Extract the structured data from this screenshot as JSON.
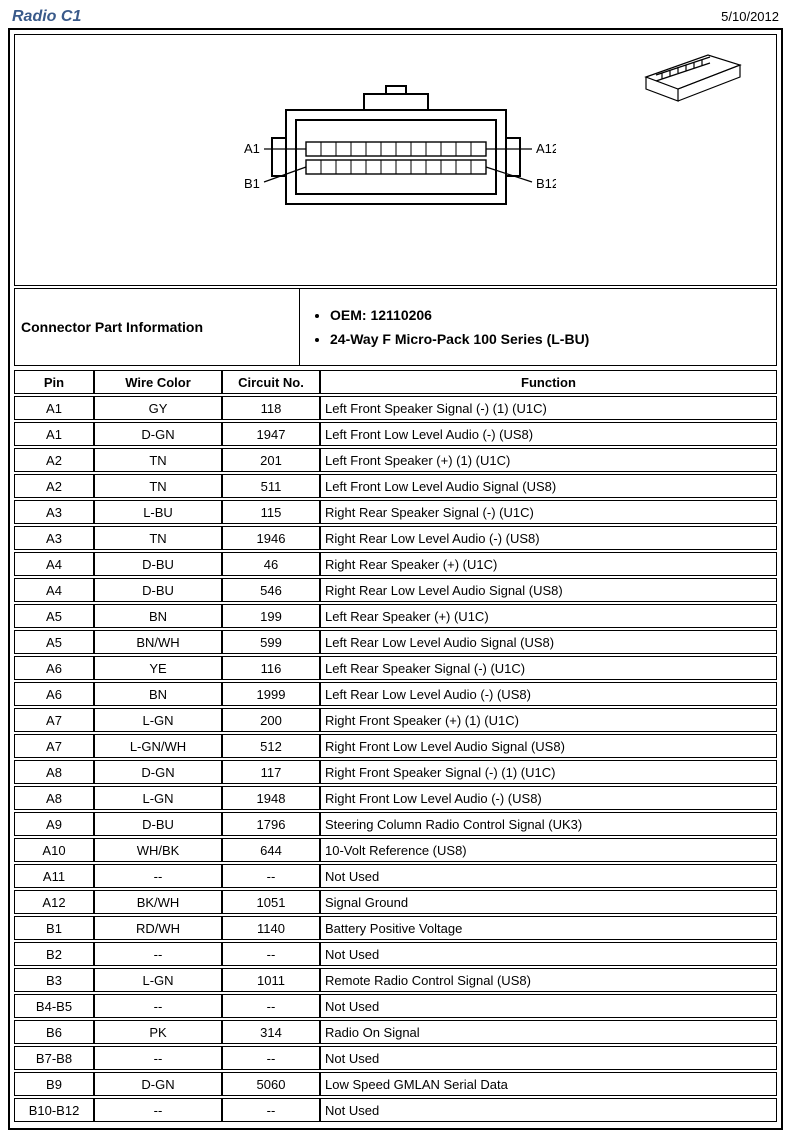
{
  "header": {
    "title": "Radio C1",
    "date": "5/10/2012"
  },
  "diagram": {
    "labels": {
      "a1": "A1",
      "a12": "A12",
      "b1": "B1",
      "b12": "B12"
    }
  },
  "info": {
    "heading": "Connector Part Information",
    "oem_label": "OEM: 12110206",
    "series_label": "24-Way F Micro-Pack 100 Series (L-BU)"
  },
  "columns": {
    "pin": "Pin",
    "wire": "Wire Color",
    "circuit": "Circuit No.",
    "func": "Function"
  },
  "rows": [
    {
      "pin": "A1",
      "wire": "GY",
      "circuit": "118",
      "func": "Left Front Speaker Signal (-) (1) (U1C)"
    },
    {
      "pin": "A1",
      "wire": "D-GN",
      "circuit": "1947",
      "func": "Left Front Low Level Audio (-) (US8)"
    },
    {
      "pin": "A2",
      "wire": "TN",
      "circuit": "201",
      "func": "Left Front Speaker (+) (1) (U1C)"
    },
    {
      "pin": "A2",
      "wire": "TN",
      "circuit": "511",
      "func": "Left Front Low Level Audio Signal (US8)"
    },
    {
      "pin": "A3",
      "wire": "L-BU",
      "circuit": "115",
      "func": "Right Rear Speaker Signal (-) (U1C)"
    },
    {
      "pin": "A3",
      "wire": "TN",
      "circuit": "1946",
      "func": "Right Rear Low Level Audio (-) (US8)"
    },
    {
      "pin": "A4",
      "wire": "D-BU",
      "circuit": "46",
      "func": "Right Rear Speaker (+) (U1C)"
    },
    {
      "pin": "A4",
      "wire": "D-BU",
      "circuit": "546",
      "func": "Right Rear Low Level Audio Signal (US8)"
    },
    {
      "pin": "A5",
      "wire": "BN",
      "circuit": "199",
      "func": "Left Rear Speaker (+) (U1C)"
    },
    {
      "pin": "A5",
      "wire": "BN/WH",
      "circuit": "599",
      "func": "Left Rear Low Level Audio Signal (US8)"
    },
    {
      "pin": "A6",
      "wire": "YE",
      "circuit": "116",
      "func": "Left Rear Speaker Signal (-) (U1C)"
    },
    {
      "pin": "A6",
      "wire": "BN",
      "circuit": "1999",
      "func": "Left Rear Low Level Audio (-) (US8)"
    },
    {
      "pin": "A7",
      "wire": "L-GN",
      "circuit": "200",
      "func": "Right Front Speaker (+) (1) (U1C)"
    },
    {
      "pin": "A7",
      "wire": "L-GN/WH",
      "circuit": "512",
      "func": "Right Front Low Level Audio Signal (US8)"
    },
    {
      "pin": "A8",
      "wire": "D-GN",
      "circuit": "117",
      "func": "Right Front Speaker Signal (-) (1) (U1C)"
    },
    {
      "pin": "A8",
      "wire": "L-GN",
      "circuit": "1948",
      "func": "Right Front Low Level Audio (-) (US8)"
    },
    {
      "pin": "A9",
      "wire": "D-BU",
      "circuit": "1796",
      "func": "Steering Column Radio Control Signal (UK3)"
    },
    {
      "pin": "A10",
      "wire": "WH/BK",
      "circuit": "644",
      "func": "10-Volt Reference (US8)"
    },
    {
      "pin": "A11",
      "wire": "--",
      "circuit": "--",
      "func": "Not Used"
    },
    {
      "pin": "A12",
      "wire": "BK/WH",
      "circuit": "1051",
      "func": "Signal Ground"
    },
    {
      "pin": "B1",
      "wire": "RD/WH",
      "circuit": "1140",
      "func": "Battery Positive Voltage"
    },
    {
      "pin": "B2",
      "wire": "--",
      "circuit": "--",
      "func": "Not Used"
    },
    {
      "pin": "B3",
      "wire": "L-GN",
      "circuit": "1011",
      "func": "Remote Radio Control Signal (US8)"
    },
    {
      "pin": "B4-B5",
      "wire": "--",
      "circuit": "--",
      "func": "Not Used"
    },
    {
      "pin": "B6",
      "wire": "PK",
      "circuit": "314",
      "func": "Radio On Signal"
    },
    {
      "pin": "B7-B8",
      "wire": "--",
      "circuit": "--",
      "func": "Not Used"
    },
    {
      "pin": "B9",
      "wire": "D-GN",
      "circuit": "5060",
      "func": "Low Speed GMLAN Serial Data"
    },
    {
      "pin": "B10-B12",
      "wire": "--",
      "circuit": "--",
      "func": "Not Used"
    }
  ]
}
